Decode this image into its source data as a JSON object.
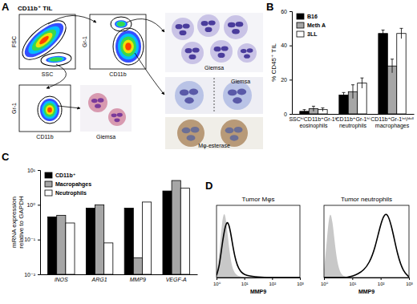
{
  "panels": [
    "A",
    "B",
    "C",
    "D"
  ],
  "panel_a": {
    "gate_title": "CD11b⁺ TIL",
    "plots": [
      {
        "x_label": "SSC",
        "y_label": "FSC"
      },
      {
        "x_label": "CD11b",
        "y_label": "Gr-1"
      },
      {
        "x_label": "CD11b",
        "y_label": "Gr-1"
      }
    ],
    "stains": [
      "Giemsa",
      "Giemsa",
      "Mφ-esterase",
      "Giemsa"
    ]
  },
  "chart_data": [
    {
      "type": "bar",
      "ylabel": "% CD45⁺ TIL",
      "categories": [
        "SSCʰⁱCD11b⁺Gr-1ˡᵒ\neosinophils",
        "CD11b⁺Gr-1ʰⁱ\nneutrophils",
        "CD11b⁺Gr-1ⁱⁿᵗ/ᵈᵘˡˡ\nmacrophages"
      ],
      "series": [
        {
          "name": "B16",
          "color": "#000000",
          "values": [
            1.5,
            11,
            47
          ],
          "errors": [
            1,
            1.5,
            2
          ]
        },
        {
          "name": "Meth A",
          "color": "#a6a6a6",
          "values": [
            3,
            13,
            28
          ],
          "errors": [
            1.5,
            4,
            4
          ]
        },
        {
          "name": "3LL",
          "color": "#ffffff",
          "values": [
            2.5,
            18,
            47
          ],
          "errors": [
            1,
            3,
            3
          ]
        }
      ],
      "ylim": [
        0,
        60
      ],
      "yticks": [
        0,
        20,
        40,
        60
      ],
      "legend": "top-left"
    },
    {
      "type": "bar",
      "ylabel": "mRNA expression\nrelative to GAPDH",
      "log": "y",
      "categories": [
        "iNOS",
        "ARG1",
        "MMP9",
        "VEGF-A"
      ],
      "series": [
        {
          "name": "CD11b⁺",
          "color": "#000000",
          "values": [
            0.45,
            0.8,
            0.8,
            2.5
          ]
        },
        {
          "name": "Macropahges",
          "color": "#a6a6a6",
          "values": [
            0.5,
            1.0,
            0.03,
            5
          ]
        },
        {
          "name": "Neutrophils",
          "color": "#ffffff",
          "values": [
            0.3,
            0.08,
            1.2,
            3
          ]
        }
      ],
      "ylim": [
        0.01,
        10
      ],
      "yticks": [
        {
          "value": 0.01,
          "label": "10⁻²"
        },
        {
          "value": 0.1,
          "label": "10⁻¹"
        },
        {
          "value": 1,
          "label": "10⁰"
        },
        {
          "value": 10,
          "label": "10¹"
        }
      ],
      "legend": "top-left"
    },
    {
      "type": "line",
      "title": "Tumor Mφs",
      "xlabel": "MMP9",
      "log": "x",
      "tick_labels": "x",
      "x": [
        1,
        1.26,
        1.58,
        2,
        2.51,
        3.16,
        3.98,
        5.01,
        6.31,
        7.94,
        10,
        15.8,
        25.1,
        39.8,
        63.1,
        100,
        158,
        251,
        398,
        631,
        1000
      ],
      "series": [
        {
          "type": "area",
          "color": "#c8c8c8",
          "values": [
            5,
            30,
            80,
            95,
            60,
            25,
            10,
            4,
            2,
            1,
            0.5,
            0,
            0,
            0,
            0,
            0,
            0,
            0,
            0,
            0,
            0
          ]
        },
        {
          "type": "line",
          "color": "#000000",
          "values": [
            3,
            15,
            45,
            70,
            80,
            65,
            40,
            22,
            12,
            7,
            4,
            2,
            1,
            0.5,
            0,
            0,
            0,
            0,
            0,
            0,
            0
          ]
        }
      ],
      "xlim": [
        1,
        1000
      ],
      "xticks": [
        {
          "value": 1,
          "label": "10⁰"
        },
        {
          "value": 10,
          "label": "10¹"
        },
        {
          "value": 100,
          "label": "10²"
        },
        {
          "value": 1000,
          "label": "10³"
        }
      ],
      "ylim": [
        0,
        100
      ]
    },
    {
      "type": "line",
      "title": "Tumor neutrophils",
      "xlabel": "MMP9",
      "log": "x",
      "tick_labels": "x",
      "x": [
        1,
        1.26,
        1.58,
        2,
        2.51,
        3.16,
        3.98,
        5.01,
        6.31,
        7.94,
        10,
        15.8,
        25.1,
        39.8,
        63.1,
        100,
        158,
        251,
        398,
        631,
        1000
      ],
      "series": [
        {
          "type": "area",
          "color": "#c8c8c8",
          "values": [
            10,
            50,
            95,
            80,
            40,
            15,
            5,
            2,
            1,
            0,
            0,
            0,
            0,
            0,
            0,
            0,
            0,
            0,
            0,
            0,
            0
          ]
        },
        {
          "type": "line",
          "color": "#000000",
          "values": [
            0,
            0,
            0,
            0,
            0,
            0,
            0,
            0,
            0,
            1,
            2,
            5,
            10,
            20,
            40,
            75,
            95,
            70,
            30,
            8,
            1
          ]
        }
      ],
      "xlim": [
        1,
        1000
      ],
      "xticks": [
        {
          "value": 1,
          "label": "10⁰"
        },
        {
          "value": 10,
          "label": "10¹"
        },
        {
          "value": 100,
          "label": "10²"
        },
        {
          "value": 1000,
          "label": "10³"
        }
      ],
      "ylim": [
        0,
        100
      ]
    }
  ]
}
